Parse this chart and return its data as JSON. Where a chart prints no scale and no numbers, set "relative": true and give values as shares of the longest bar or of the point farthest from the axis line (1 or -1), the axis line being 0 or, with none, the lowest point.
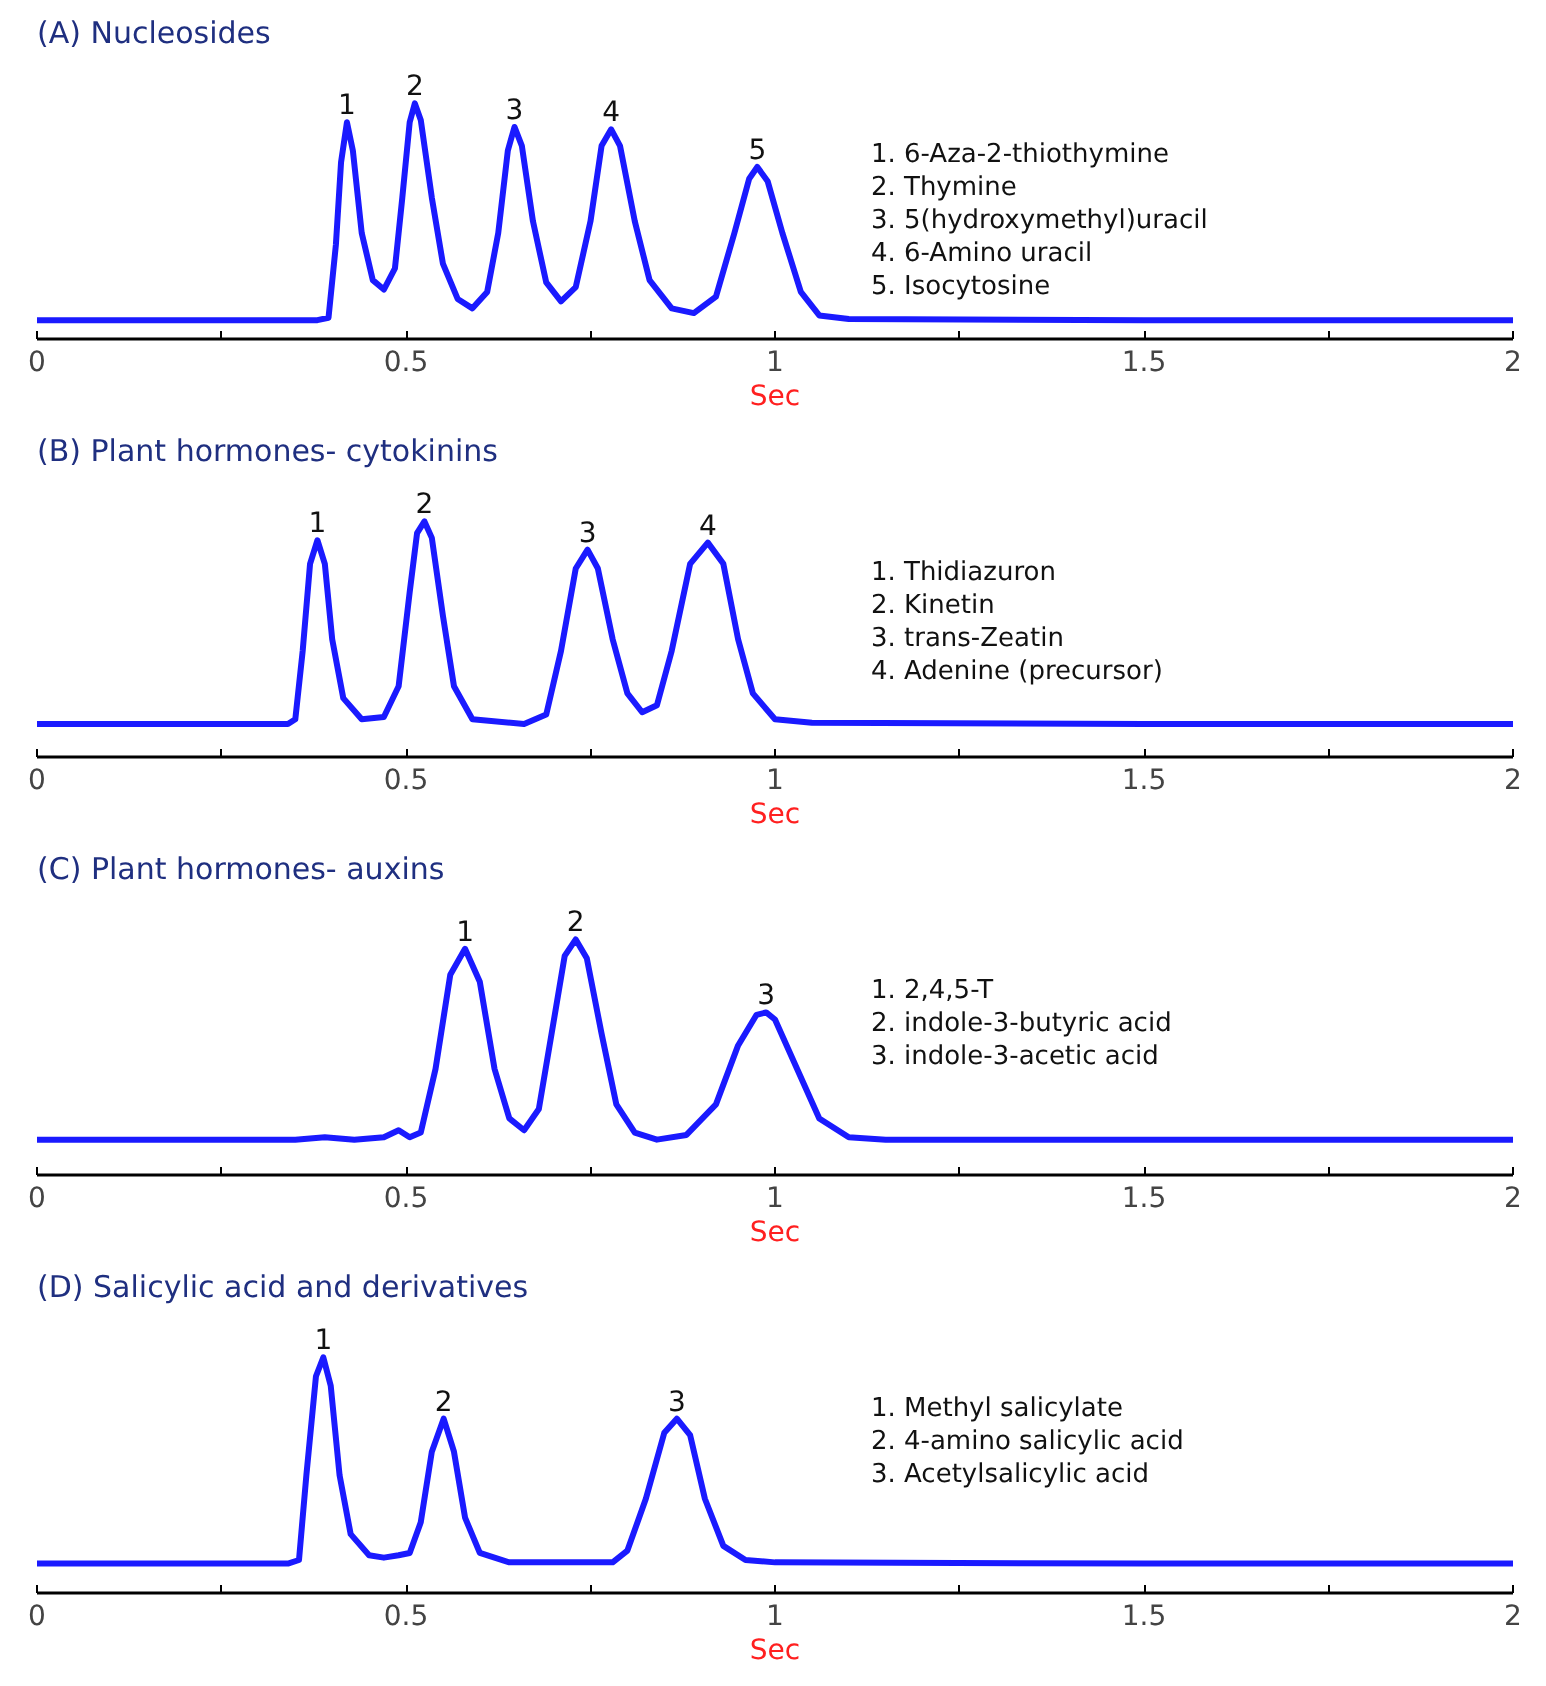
{
  "chart_data": [
    {
      "type": "line",
      "relative": true,
      "title": "(A) Nucleosides",
      "xlabel": "Sec",
      "xlim": [
        0,
        2
      ],
      "xticks": [
        0,
        {
          "value": 0.25,
          "label": null
        },
        0.5,
        {
          "value": 0.75,
          "label": null
        },
        1,
        {
          "value": 1.25,
          "label": null
        },
        1.5,
        {
          "value": 1.75,
          "label": null
        },
        2
      ],
      "grid": false,
      "series": [
        {
          "color": "#1a1aff",
          "x": [
            0,
            0.2,
            0.38,
            0.395,
            0.405,
            0.412,
            0.42,
            0.428,
            0.44,
            0.455,
            0.47,
            0.485,
            0.495,
            0.505,
            0.512,
            0.52,
            0.535,
            0.55,
            0.57,
            0.59,
            0.61,
            0.625,
            0.638,
            0.647,
            0.657,
            0.672,
            0.69,
            0.71,
            0.73,
            0.75,
            0.765,
            0.778,
            0.79,
            0.81,
            0.83,
            0.86,
            0.89,
            0.92,
            0.945,
            0.965,
            0.976,
            0.99,
            1.01,
            1.035,
            1.06,
            1.1,
            1.5,
            2
          ],
          "values": [
            0.08,
            0.08,
            0.08,
            0.09,
            0.4,
            0.75,
            0.92,
            0.8,
            0.45,
            0.25,
            0.21,
            0.3,
            0.6,
            0.92,
            1.0,
            0.93,
            0.6,
            0.32,
            0.17,
            0.13,
            0.2,
            0.45,
            0.8,
            0.9,
            0.82,
            0.5,
            0.24,
            0.16,
            0.22,
            0.5,
            0.82,
            0.89,
            0.82,
            0.5,
            0.25,
            0.13,
            0.11,
            0.18,
            0.45,
            0.68,
            0.73,
            0.67,
            0.45,
            0.2,
            0.1,
            0.085,
            0.08,
            0.08
          ]
        }
      ],
      "annotations": [
        {
          "text": "1",
          "x": 0.42,
          "y": 0.92
        },
        {
          "text": "2",
          "x": 0.512,
          "y": 1.0
        },
        {
          "text": "3",
          "x": 0.647,
          "y": 0.9
        },
        {
          "text": "4",
          "x": 0.778,
          "y": 0.89
        },
        {
          "text": "5",
          "x": 0.976,
          "y": 0.73
        },
        "1.      6-Aza-2-thiothymine",
        "2.      Thymine",
        "3.      5(hydroxymethyl)uracil",
        "4.      6-Amino uracil",
        "5.      Isocytosine"
      ]
    },
    {
      "type": "line",
      "relative": true,
      "title": "(B) Plant hormones- cytokinins",
      "xlabel": "Sec",
      "xlim": [
        0,
        2
      ],
      "xticks": [
        0,
        {
          "value": 0.25,
          "label": null
        },
        0.5,
        {
          "value": 0.75,
          "label": null
        },
        1,
        {
          "value": 1.25,
          "label": null
        },
        1.5,
        {
          "value": 1.75,
          "label": null
        },
        2
      ],
      "grid": false,
      "series": [
        {
          "color": "#1a1aff",
          "x": [
            0,
            0.34,
            0.35,
            0.36,
            0.37,
            0.38,
            0.39,
            0.4,
            0.415,
            0.44,
            0.47,
            0.49,
            0.505,
            0.515,
            0.525,
            0.535,
            0.55,
            0.565,
            0.59,
            0.66,
            0.69,
            0.71,
            0.73,
            0.746,
            0.76,
            0.78,
            0.8,
            0.82,
            0.84,
            0.86,
            0.885,
            0.909,
            0.93,
            0.95,
            0.97,
            1.0,
            1.05,
            1.5,
            2
          ],
          "values": [
            0.14,
            0.14,
            0.16,
            0.45,
            0.82,
            0.92,
            0.82,
            0.5,
            0.25,
            0.16,
            0.17,
            0.3,
            0.7,
            0.95,
            1.0,
            0.93,
            0.6,
            0.3,
            0.16,
            0.14,
            0.18,
            0.45,
            0.8,
            0.88,
            0.8,
            0.5,
            0.27,
            0.19,
            0.22,
            0.45,
            0.82,
            0.91,
            0.82,
            0.5,
            0.27,
            0.16,
            0.145,
            0.14,
            0.14
          ]
        }
      ],
      "annotations": [
        {
          "text": "1",
          "x": 0.38,
          "y": 0.92
        },
        {
          "text": "2",
          "x": 0.525,
          "y": 1.0
        },
        {
          "text": "3",
          "x": 0.746,
          "y": 0.88
        },
        {
          "text": "4",
          "x": 0.909,
          "y": 0.91
        },
        "1.      Thidiazuron",
        "2.      Kinetin",
        "3.      trans-Zeatin",
        "4.      Adenine (precursor)"
      ]
    },
    {
      "type": "line",
      "relative": true,
      "title": "(C) Plant hormones- auxins",
      "xlabel": "Sec",
      "xlim": [
        0,
        2
      ],
      "xticks": [
        0,
        {
          "value": 0.25,
          "label": null
        },
        0.5,
        {
          "value": 0.75,
          "label": null
        },
        1,
        {
          "value": 1.25,
          "label": null
        },
        1.5,
        {
          "value": 1.75,
          "label": null
        },
        2
      ],
      "grid": false,
      "series": [
        {
          "color": "#1a1aff",
          "x": [
            0,
            0.35,
            0.39,
            0.43,
            0.47,
            0.49,
            0.505,
            0.52,
            0.54,
            0.56,
            0.58,
            0.6,
            0.62,
            0.64,
            0.66,
            0.68,
            0.7,
            0.715,
            0.73,
            0.745,
            0.765,
            0.785,
            0.81,
            0.84,
            0.88,
            0.92,
            0.95,
            0.975,
            0.988,
            1.0,
            1.03,
            1.06,
            1.1,
            1.15,
            1.5,
            2
          ],
          "values": [
            0.15,
            0.15,
            0.16,
            0.15,
            0.16,
            0.19,
            0.16,
            0.18,
            0.45,
            0.85,
            0.96,
            0.82,
            0.45,
            0.24,
            0.19,
            0.28,
            0.65,
            0.93,
            1.0,
            0.92,
            0.6,
            0.3,
            0.18,
            0.15,
            0.17,
            0.3,
            0.55,
            0.68,
            0.69,
            0.66,
            0.45,
            0.24,
            0.16,
            0.15,
            0.15,
            0.15
          ]
        }
      ],
      "annotations": [
        {
          "text": "1",
          "x": 0.58,
          "y": 0.96
        },
        {
          "text": "2",
          "x": 0.73,
          "y": 1.0
        },
        {
          "text": "3",
          "x": 0.988,
          "y": 0.69
        },
        "1.          2,4,5-T",
        "2.          indole-3-butyric acid",
        "3.          indole-3-acetic acid"
      ]
    },
    {
      "type": "line",
      "relative": true,
      "title": "(D) Salicylic acid and derivatives",
      "xlabel": "Sec",
      "xlim": [
        0,
        2
      ],
      "xticks": [
        0,
        {
          "value": 0.25,
          "label": null
        },
        0.5,
        {
          "value": 0.75,
          "label": null
        },
        1,
        {
          "value": 1.25,
          "label": null
        },
        1.5,
        {
          "value": 1.75,
          "label": null
        },
        2
      ],
      "grid": false,
      "series": [
        {
          "color": "#1a1aff",
          "x": [
            0,
            0.34,
            0.355,
            0.365,
            0.378,
            0.388,
            0.398,
            0.41,
            0.425,
            0.45,
            0.47,
            0.49,
            0.505,
            0.52,
            0.535,
            0.551,
            0.565,
            0.58,
            0.6,
            0.64,
            0.78,
            0.8,
            0.825,
            0.85,
            0.867,
            0.885,
            0.905,
            0.93,
            0.96,
            1.0,
            1.5,
            2
          ],
          "values": [
            0.125,
            0.125,
            0.14,
            0.5,
            0.92,
            1.0,
            0.88,
            0.5,
            0.25,
            0.16,
            0.15,
            0.16,
            0.17,
            0.3,
            0.6,
            0.74,
            0.6,
            0.32,
            0.17,
            0.13,
            0.13,
            0.18,
            0.4,
            0.68,
            0.74,
            0.67,
            0.4,
            0.2,
            0.14,
            0.13,
            0.125,
            0.125
          ]
        }
      ],
      "annotations": [
        {
          "text": "1",
          "x": 0.388,
          "y": 1.0
        },
        {
          "text": "2",
          "x": 0.551,
          "y": 0.74
        },
        {
          "text": "3",
          "x": 0.867,
          "y": 0.74
        },
        "1.    Methyl salicylate",
        "2.    4-amino salicylic acid",
        "3.    Acetylsalicylic acid"
      ]
    }
  ]
}
